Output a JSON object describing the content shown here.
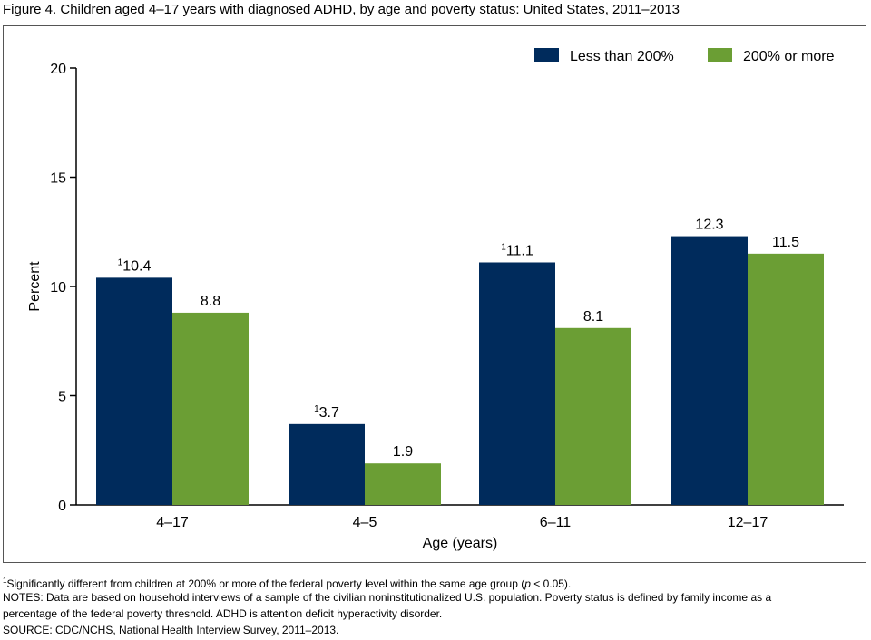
{
  "chart_data": {
    "type": "bar",
    "title": "Figure 4. Children aged 4–17 years with diagnosed ADHD, by age and poverty status: United States, 2011–2013",
    "xlabel": "Age (years)",
    "ylabel": "Percent",
    "ylim": [
      0,
      20
    ],
    "yticks": [
      0,
      5,
      10,
      15,
      20
    ],
    "grid": false,
    "legend_position": "top-right",
    "categories": [
      "4–17",
      "4–5",
      "6–11",
      "12–17"
    ],
    "series": [
      {
        "name": "Less than 200%",
        "color": "#002B5C",
        "values": [
          10.4,
          3.7,
          11.1,
          12.3
        ],
        "labels": [
          "10.4",
          "3.7",
          "11.1",
          "12.3"
        ],
        "footnote_marker": [
          true,
          true,
          true,
          false
        ]
      },
      {
        "name": "200% or more",
        "color": "#6B9E34",
        "values": [
          8.8,
          1.9,
          8.1,
          11.5
        ],
        "labels": [
          "8.8",
          "1.9",
          "8.1",
          "11.5"
        ],
        "footnote_marker": [
          false,
          false,
          false,
          false
        ]
      }
    ],
    "footnote_marker": "1"
  },
  "notes": {
    "footnote_marker": "1",
    "footnote": "Significantly different from children at 200% or more of the federal poverty level within the same age group (",
    "footnote_p": "p",
    "footnote_end": " < 0.05).",
    "notes_line1": "NOTES: Data are based on household interviews of a sample of the civilian noninstitutionalized U.S. population. Poverty status is defined by family income as a",
    "notes_line2": "percentage of the federal poverty threshold. ADHD is attention deficit hyperactivity disorder.",
    "source": "SOURCE: CDC/NCHS, National Health Interview Survey, 2011–2013."
  }
}
